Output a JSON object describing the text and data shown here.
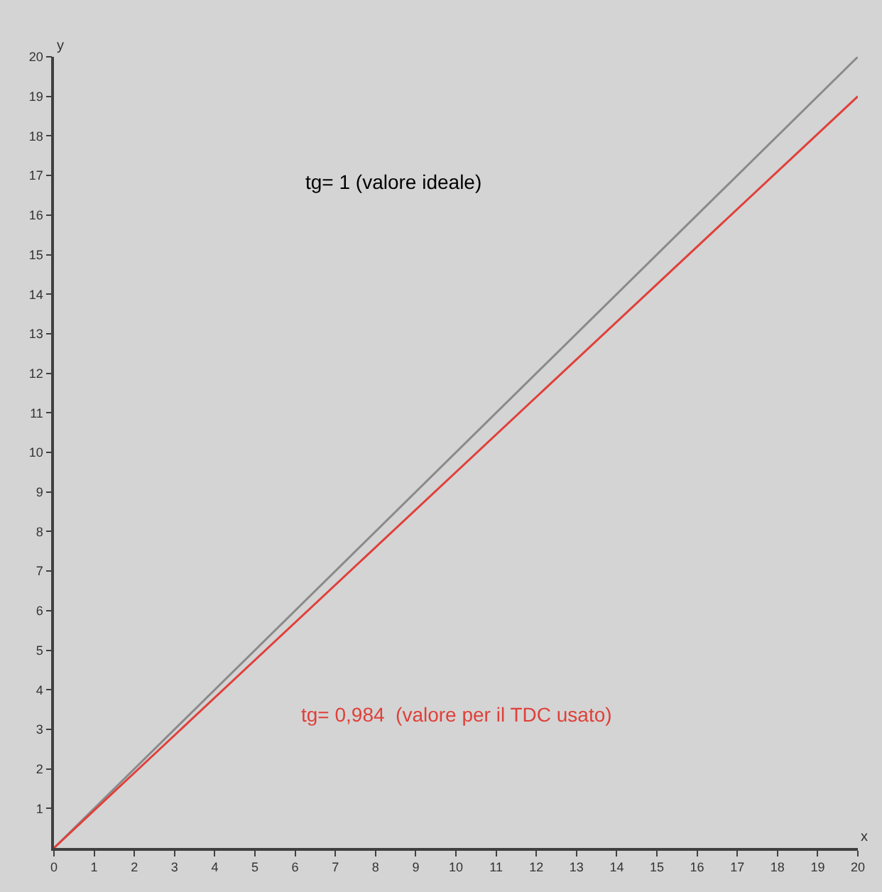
{
  "chart_data": {
    "type": "line",
    "xlabel": "x",
    "ylabel": "y",
    "x": [
      0,
      20
    ],
    "series": [
      {
        "color": "#8a8a8a",
        "values": [
          0,
          20
        ]
      },
      {
        "color": "#e0403a",
        "values": [
          0,
          19
        ]
      }
    ],
    "annotations": [
      "tg= 1 (valore ideale)",
      "tg= 0,984  (valore per il TDC usato)"
    ],
    "xlim": [
      0,
      20
    ],
    "ylim": [
      0,
      20
    ],
    "xticks": [
      0,
      1,
      2,
      3,
      4,
      5,
      6,
      7,
      8,
      9,
      10,
      11,
      12,
      13,
      14,
      15,
      16,
      17,
      18,
      19,
      20
    ],
    "yticks": [
      1,
      2,
      3,
      4,
      5,
      6,
      7,
      8,
      9,
      10,
      11,
      12,
      13,
      14,
      15,
      16,
      17,
      18,
      19,
      20
    ],
    "grid": false,
    "marker": "none",
    "line_style": "solid"
  }
}
